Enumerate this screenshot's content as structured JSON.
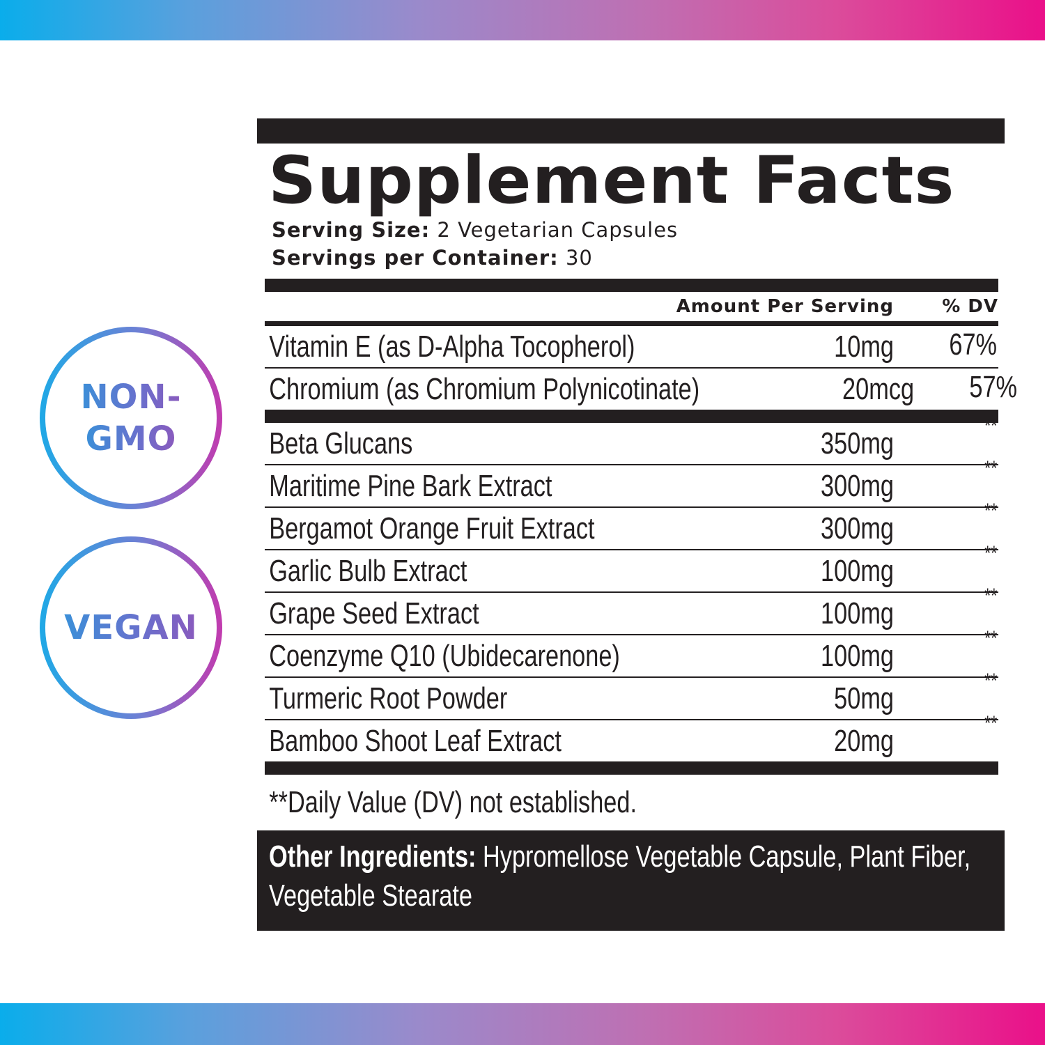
{
  "colors": {
    "gradient_start": "#0aadeb",
    "gradient_mid": "#bf6fb2",
    "gradient_end": "#ea1089",
    "label_ink": "#231f20"
  },
  "badges": [
    {
      "line1": "NON-",
      "line2": "GMO",
      "icon": "non-gmo-badge-icon"
    },
    {
      "line1": "VEGAN",
      "icon": "vegan-badge-icon"
    }
  ],
  "label": {
    "title": "Supplement Facts",
    "serving_size_label": "Serving Size:",
    "serving_size_value": " 2 Vegetarian Capsules",
    "servings_per_container_label": "Servings per Container:",
    "servings_per_container_value": " 30",
    "header": {
      "amount": "Amount Per Serving",
      "dv": "% DV"
    },
    "vitamins": [
      {
        "name": "Vitamin E (as D-Alpha Tocopherol)",
        "amount": "10mg",
        "dv": "67%"
      },
      {
        "name": "Chromium (as Chromium Polynicotinate)",
        "amount": "20mcg",
        "dv": "57%"
      }
    ],
    "ingredients": [
      {
        "name": "Beta Glucans",
        "amount": "350mg",
        "dv": "**"
      },
      {
        "name": "Maritime Pine Bark Extract",
        "amount": "300mg",
        "dv": "**"
      },
      {
        "name": "Bergamot Orange Fruit Extract",
        "amount": "300mg",
        "dv": "**"
      },
      {
        "name": "Garlic Bulb Extract",
        "amount": "100mg",
        "dv": "**"
      },
      {
        "name": "Grape Seed Extract",
        "amount": "100mg",
        "dv": "**"
      },
      {
        "name": "Coenzyme Q10 (Ubidecarenone)",
        "amount": "100mg",
        "dv": "**"
      },
      {
        "name": "Turmeric Root Powder",
        "amount": "50mg",
        "dv": "**"
      },
      {
        "name": "Bamboo Shoot Leaf Extract",
        "amount": "20mg",
        "dv": "**"
      }
    ],
    "footnote": "**Daily Value (DV) not established.",
    "other_ingredients_label": "Other Ingredients:",
    "other_ingredients_value": " Hypromellose Vegetable Capsule, Plant Fiber, Vegetable Stearate"
  }
}
